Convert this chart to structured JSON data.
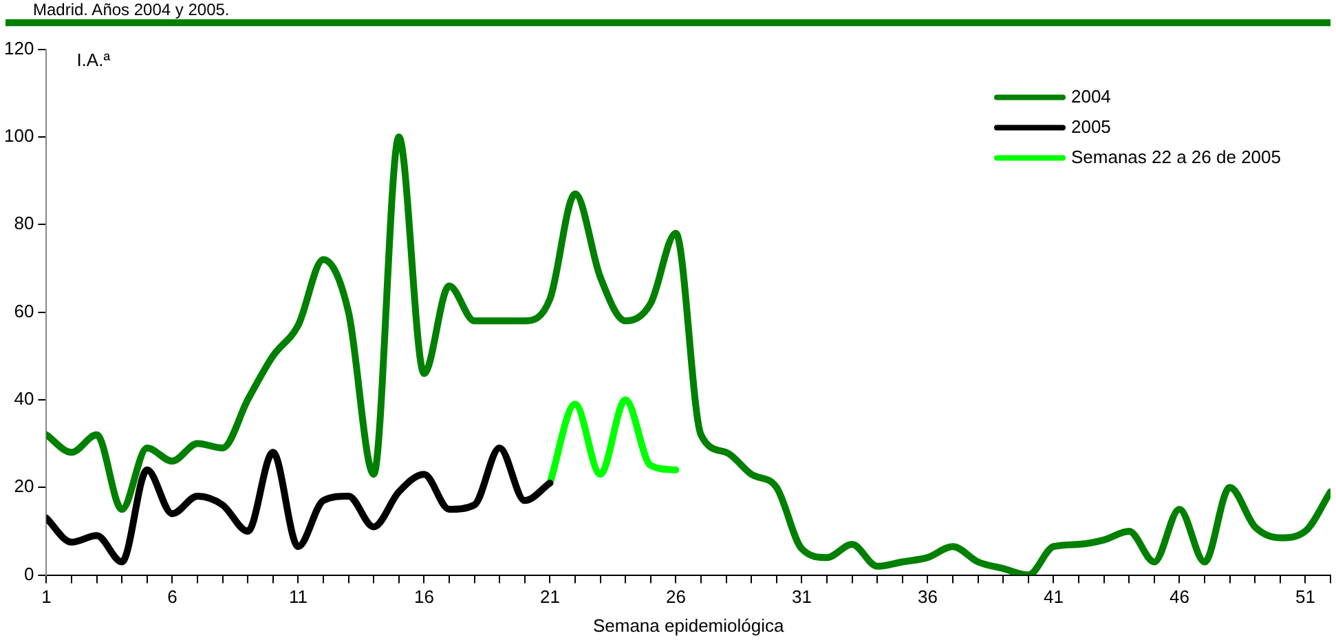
{
  "chart_data": {
    "type": "line",
    "title": "Madrid. Años 2004 y 2005.",
    "xlabel": "Semana epidemiológica",
    "ylabel": "I.A.ª",
    "xlim": [
      1,
      52
    ],
    "ylim": [
      0,
      120
    ],
    "xticks": [
      1,
      {
        "value": 2,
        "label": null
      },
      {
        "value": 3,
        "label": null
      },
      {
        "value": 4,
        "label": null
      },
      {
        "value": 5,
        "label": null
      },
      6,
      {
        "value": 7,
        "label": null
      },
      {
        "value": 8,
        "label": null
      },
      {
        "value": 9,
        "label": null
      },
      {
        "value": 10,
        "label": null
      },
      11,
      {
        "value": 12,
        "label": null
      },
      {
        "value": 13,
        "label": null
      },
      {
        "value": 14,
        "label": null
      },
      {
        "value": 15,
        "label": null
      },
      16,
      {
        "value": 17,
        "label": null
      },
      {
        "value": 18,
        "label": null
      },
      {
        "value": 19,
        "label": null
      },
      {
        "value": 20,
        "label": null
      },
      21,
      {
        "value": 22,
        "label": null
      },
      {
        "value": 23,
        "label": null
      },
      {
        "value": 24,
        "label": null
      },
      {
        "value": 25,
        "label": null
      },
      26,
      {
        "value": 27,
        "label": null
      },
      {
        "value": 28,
        "label": null
      },
      {
        "value": 29,
        "label": null
      },
      {
        "value": 30,
        "label": null
      },
      31,
      {
        "value": 32,
        "label": null
      },
      {
        "value": 33,
        "label": null
      },
      {
        "value": 34,
        "label": null
      },
      {
        "value": 35,
        "label": null
      },
      36,
      {
        "value": 37,
        "label": null
      },
      {
        "value": 38,
        "label": null
      },
      {
        "value": 39,
        "label": null
      },
      {
        "value": 40,
        "label": null
      },
      41,
      {
        "value": 42,
        "label": null
      },
      {
        "value": 43,
        "label": null
      },
      {
        "value": 44,
        "label": null
      },
      {
        "value": 45,
        "label": null
      },
      46,
      {
        "value": 47,
        "label": null
      },
      {
        "value": 48,
        "label": null
      },
      {
        "value": 49,
        "label": null
      },
      {
        "value": 50,
        "label": null
      },
      51,
      {
        "value": 52,
        "label": null
      }
    ],
    "yticks": [
      0,
      20,
      40,
      60,
      80,
      100,
      120
    ],
    "grid": false,
    "legend": "top right",
    "marker": "none",
    "line_style": "solid",
    "series": [
      {
        "name": "2004",
        "color": "#008000",
        "x": [
          1,
          2,
          3,
          4,
          5,
          6,
          7,
          8,
          9,
          10,
          11,
          12,
          13,
          14,
          15,
          16,
          17,
          18,
          19,
          20,
          21,
          22,
          23,
          24,
          25,
          26,
          27,
          28,
          29,
          30,
          31,
          32,
          33,
          34,
          35,
          36,
          37,
          38,
          39,
          40,
          41,
          42,
          43,
          44,
          45,
          46,
          47,
          48,
          49,
          50,
          51,
          52
        ],
        "values": [
          32,
          28,
          32,
          15,
          29,
          26,
          30,
          29,
          40,
          50,
          57,
          72,
          60,
          23,
          100,
          46,
          66,
          58,
          58,
          58,
          63,
          87,
          68,
          58,
          62,
          78,
          32,
          28,
          23,
          20,
          6,
          4,
          7,
          2,
          3,
          4,
          6.5,
          3,
          1.5,
          0,
          6.5,
          7,
          8,
          10,
          3,
          15,
          3,
          20,
          11,
          8.5,
          10,
          19
        ]
      },
      {
        "name": "2005",
        "color": "#000000",
        "x": [
          1,
          2,
          3,
          4,
          5,
          6,
          7,
          8,
          9,
          10,
          11,
          12,
          13,
          14,
          15,
          16,
          17,
          18,
          19,
          20,
          21
        ],
        "values": [
          13,
          7.5,
          9,
          3,
          24,
          14,
          18,
          16,
          10,
          28,
          6.5,
          17,
          18,
          11,
          19,
          23,
          15,
          16,
          29,
          17,
          21
        ]
      },
      {
        "name": "Semanas 22 a 26 de 2005",
        "color": "#00ff00",
        "x": [
          21,
          22,
          23,
          24,
          25,
          26
        ],
        "values": [
          21,
          39,
          23,
          40,
          25,
          24
        ]
      }
    ]
  }
}
